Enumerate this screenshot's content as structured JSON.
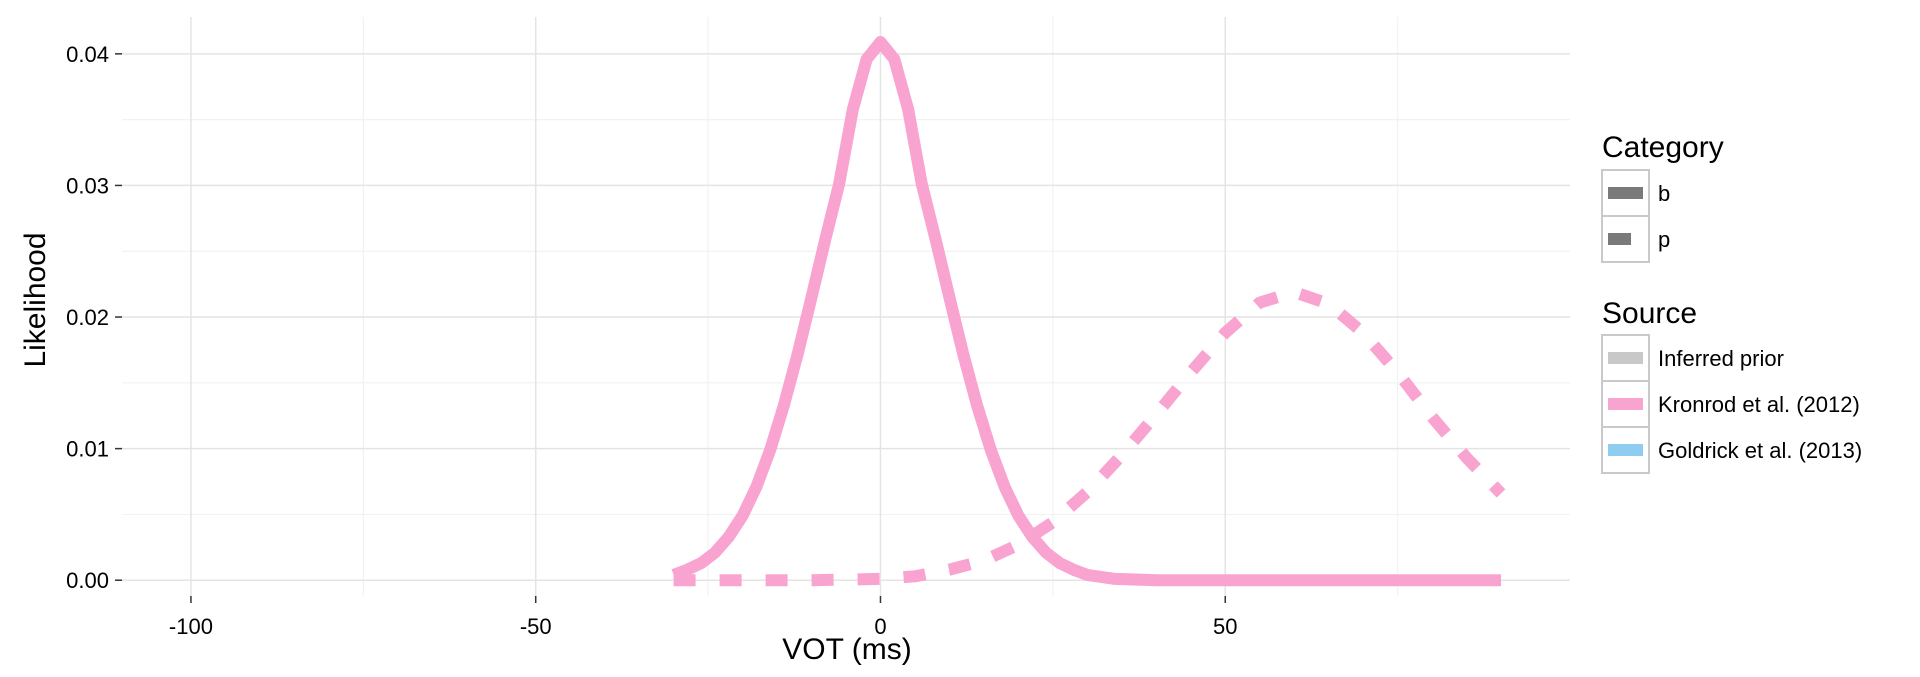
{
  "chart_data": {
    "type": "line",
    "title": "",
    "xlabel": "VOT (ms)",
    "ylabel": "Likelihood",
    "xlim": [
      -110,
      100
    ],
    "ylim": [
      -0.0012,
      0.0428
    ],
    "x_ticks": [
      -100,
      -50,
      0,
      50
    ],
    "x_tick_labels": [
      "-100",
      "-50",
      "0",
      "50"
    ],
    "y_ticks": [
      0.0,
      0.01,
      0.02,
      0.03,
      0.04
    ],
    "y_tick_labels": [
      "0.00",
      "0.01",
      "0.02",
      "0.03",
      "0.04"
    ],
    "grid": true,
    "legend_position": "right",
    "legend": {
      "category": {
        "title": "Category",
        "items": [
          {
            "label": "b",
            "line": "solid"
          },
          {
            "label": "p",
            "line": "dashed"
          }
        ]
      },
      "source": {
        "title": "Source",
        "items": [
          {
            "label": "Inferred prior",
            "color": "#c8c8c8"
          },
          {
            "label": "Kronrod et al. (2012)",
            "color": "#f9a3d1"
          },
          {
            "label": "Goldrick et al. (2013)",
            "color": "#8fcdf0"
          }
        ]
      }
    },
    "series": [
      {
        "category": "b",
        "source": "Kronrod et al. (2012)",
        "color": "#f9a3d1",
        "line": "solid",
        "x": [
          -30,
          -28,
          -26,
          -24,
          -22,
          -20,
          -18,
          -16,
          -14,
          -12,
          -10,
          -8,
          -6,
          -4,
          -2,
          0,
          2,
          4,
          6,
          8,
          10,
          12,
          14,
          16,
          18,
          20,
          22,
          24,
          26,
          28,
          30,
          34,
          40,
          50,
          60,
          70,
          80,
          90
        ],
        "y": [
          0.0004,
          0.0008,
          0.0013,
          0.0021,
          0.0033,
          0.0049,
          0.0071,
          0.0099,
          0.0133,
          0.0172,
          0.0215,
          0.0259,
          0.0301,
          0.0358,
          0.0396,
          0.0409,
          0.0396,
          0.0358,
          0.0301,
          0.0259,
          0.0215,
          0.0172,
          0.0133,
          0.0099,
          0.0071,
          0.0049,
          0.0033,
          0.0021,
          0.0013,
          0.0008,
          0.0004,
          0.0001,
          0.0,
          0.0,
          0.0,
          0.0,
          0.0,
          0.0
        ]
      },
      {
        "category": "p",
        "source": "Kronrod et al. (2012)",
        "color": "#f9a3d1",
        "line": "dashed",
        "x": [
          -30,
          -20,
          -10,
          0,
          5,
          10,
          15,
          20,
          25,
          30,
          35,
          40,
          45,
          50,
          55,
          60,
          65,
          70,
          75,
          80,
          85,
          90
        ],
        "y": [
          0.0,
          0.0,
          0.0,
          0.0001,
          0.0003,
          0.0008,
          0.0015,
          0.0027,
          0.0044,
          0.0067,
          0.0095,
          0.0126,
          0.0158,
          0.0188,
          0.0211,
          0.0219,
          0.021,
          0.0188,
          0.0158,
          0.0124,
          0.0093,
          0.0066
        ]
      }
    ]
  }
}
